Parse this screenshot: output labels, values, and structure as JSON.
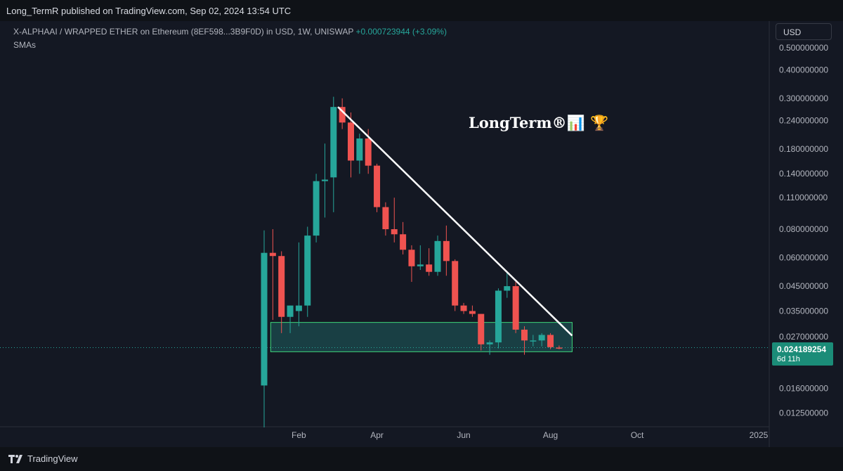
{
  "header": {
    "publish_line": "Long_TermR published on TradingView.com, Sep 02, 2024 13:54 UTC"
  },
  "legend": {
    "symbol_line": "X-ALPHAAI / WRAPPED ETHER on Ethereum (8EF598...3B9F0D) in USD, 1W, UNISWAP",
    "change": "+0.000723944 (+3.09%)",
    "indicator": "SMAs"
  },
  "currency_button": "USD",
  "watermark": "LongTerm®📊 🏆",
  "last_price": {
    "price": "0.024189254",
    "countdown": "6d 11h"
  },
  "footer": {
    "brand": "TradingView"
  },
  "colors": {
    "up": "#26a69a",
    "down": "#ef5350",
    "background": "#141823",
    "zone": "#26a69a",
    "trendline": "#ffffff"
  },
  "chart_data": {
    "type": "candlestick",
    "interval": "1W",
    "y_scale": "log",
    "ylim": [
      0.0105,
      0.56
    ],
    "y_ticks": [
      {
        "value": 0.5,
        "label": "0.500000000"
      },
      {
        "value": 0.4,
        "label": "0.400000000"
      },
      {
        "value": 0.3,
        "label": "0.300000000"
      },
      {
        "value": 0.24,
        "label": "0.240000000"
      },
      {
        "value": 0.18,
        "label": "0.180000000"
      },
      {
        "value": 0.14,
        "label": "0.140000000"
      },
      {
        "value": 0.11,
        "label": "0.110000000"
      },
      {
        "value": 0.08,
        "label": "0.080000000"
      },
      {
        "value": 0.06,
        "label": "0.060000000"
      },
      {
        "value": 0.045,
        "label": "0.045000000"
      },
      {
        "value": 0.035,
        "label": "0.035000000"
      },
      {
        "value": 0.027,
        "label": "0.027000000"
      },
      {
        "value": 0.016,
        "label": "0.016000000"
      },
      {
        "value": 0.0125,
        "label": "0.012500000"
      }
    ],
    "x_ticks": [
      {
        "week": 4,
        "label": "Feb"
      },
      {
        "week": 13,
        "label": "Apr"
      },
      {
        "week": 23,
        "label": "Jun"
      },
      {
        "week": 33,
        "label": "Aug"
      },
      {
        "week": 43,
        "label": "Oct"
      },
      {
        "week": 57,
        "label": "2025"
      }
    ],
    "candles": [
      {
        "week": 0,
        "o": 0.0165,
        "h": 0.079,
        "l": 0.0108,
        "c": 0.063
      },
      {
        "week": 1,
        "o": 0.063,
        "h": 0.08,
        "l": 0.032,
        "c": 0.061
      },
      {
        "week": 2,
        "o": 0.061,
        "h": 0.064,
        "l": 0.028,
        "c": 0.033
      },
      {
        "week": 3,
        "o": 0.033,
        "h": 0.037,
        "l": 0.028,
        "c": 0.037
      },
      {
        "week": 4,
        "o": 0.035,
        "h": 0.07,
        "l": 0.03,
        "c": 0.037
      },
      {
        "week": 5,
        "o": 0.037,
        "h": 0.082,
        "l": 0.033,
        "c": 0.075
      },
      {
        "week": 6,
        "o": 0.075,
        "h": 0.14,
        "l": 0.07,
        "c": 0.13
      },
      {
        "week": 7,
        "o": 0.13,
        "h": 0.19,
        "l": 0.09,
        "c": 0.132
      },
      {
        "week": 8,
        "o": 0.135,
        "h": 0.305,
        "l": 0.095,
        "c": 0.275
      },
      {
        "week": 9,
        "o": 0.275,
        "h": 0.3,
        "l": 0.22,
        "c": 0.235
      },
      {
        "week": 10,
        "o": 0.235,
        "h": 0.26,
        "l": 0.135,
        "c": 0.16
      },
      {
        "week": 11,
        "o": 0.16,
        "h": 0.21,
        "l": 0.14,
        "c": 0.2
      },
      {
        "week": 12,
        "o": 0.2,
        "h": 0.22,
        "l": 0.14,
        "c": 0.152
      },
      {
        "week": 13,
        "o": 0.152,
        "h": 0.155,
        "l": 0.095,
        "c": 0.1
      },
      {
        "week": 14,
        "o": 0.1,
        "h": 0.105,
        "l": 0.075,
        "c": 0.08
      },
      {
        "week": 15,
        "o": 0.08,
        "h": 0.11,
        "l": 0.07,
        "c": 0.076
      },
      {
        "week": 16,
        "o": 0.076,
        "h": 0.086,
        "l": 0.062,
        "c": 0.065
      },
      {
        "week": 17,
        "o": 0.065,
        "h": 0.068,
        "l": 0.047,
        "c": 0.055
      },
      {
        "week": 18,
        "o": 0.055,
        "h": 0.068,
        "l": 0.053,
        "c": 0.056
      },
      {
        "week": 19,
        "o": 0.056,
        "h": 0.066,
        "l": 0.05,
        "c": 0.052
      },
      {
        "week": 20,
        "o": 0.052,
        "h": 0.075,
        "l": 0.05,
        "c": 0.071
      },
      {
        "week": 21,
        "o": 0.071,
        "h": 0.083,
        "l": 0.05,
        "c": 0.058
      },
      {
        "week": 22,
        "o": 0.058,
        "h": 0.059,
        "l": 0.035,
        "c": 0.037
      },
      {
        "week": 23,
        "o": 0.037,
        "h": 0.038,
        "l": 0.034,
        "c": 0.035
      },
      {
        "week": 24,
        "o": 0.035,
        "h": 0.037,
        "l": 0.033,
        "c": 0.034
      },
      {
        "week": 25,
        "o": 0.034,
        "h": 0.034,
        "l": 0.0235,
        "c": 0.025
      },
      {
        "week": 26,
        "o": 0.025,
        "h": 0.026,
        "l": 0.0225,
        "c": 0.0255
      },
      {
        "week": 27,
        "o": 0.0255,
        "h": 0.044,
        "l": 0.024,
        "c": 0.043
      },
      {
        "week": 28,
        "o": 0.043,
        "h": 0.052,
        "l": 0.04,
        "c": 0.045
      },
      {
        "week": 29,
        "o": 0.045,
        "h": 0.047,
        "l": 0.028,
        "c": 0.029
      },
      {
        "week": 30,
        "o": 0.029,
        "h": 0.03,
        "l": 0.0225,
        "c": 0.026
      },
      {
        "week": 31,
        "o": 0.026,
        "h": 0.0275,
        "l": 0.0245,
        "c": 0.026
      },
      {
        "week": 32,
        "o": 0.026,
        "h": 0.028,
        "l": 0.0245,
        "c": 0.0275
      },
      {
        "week": 33,
        "o": 0.0275,
        "h": 0.028,
        "l": 0.0238,
        "c": 0.0243
      },
      {
        "week": 34,
        "o": 0.0242,
        "h": 0.0247,
        "l": 0.0238,
        "c": 0.02419
      }
    ],
    "trendline": {
      "from": {
        "week": 8.5,
        "value": 0.275
      },
      "to": {
        "week": 35.5,
        "value": 0.0273
      }
    },
    "zone": {
      "from_week": 1,
      "to_week": 35.5,
      "low": 0.0232,
      "high": 0.0312
    },
    "last_price_line": 0.024189254
  }
}
